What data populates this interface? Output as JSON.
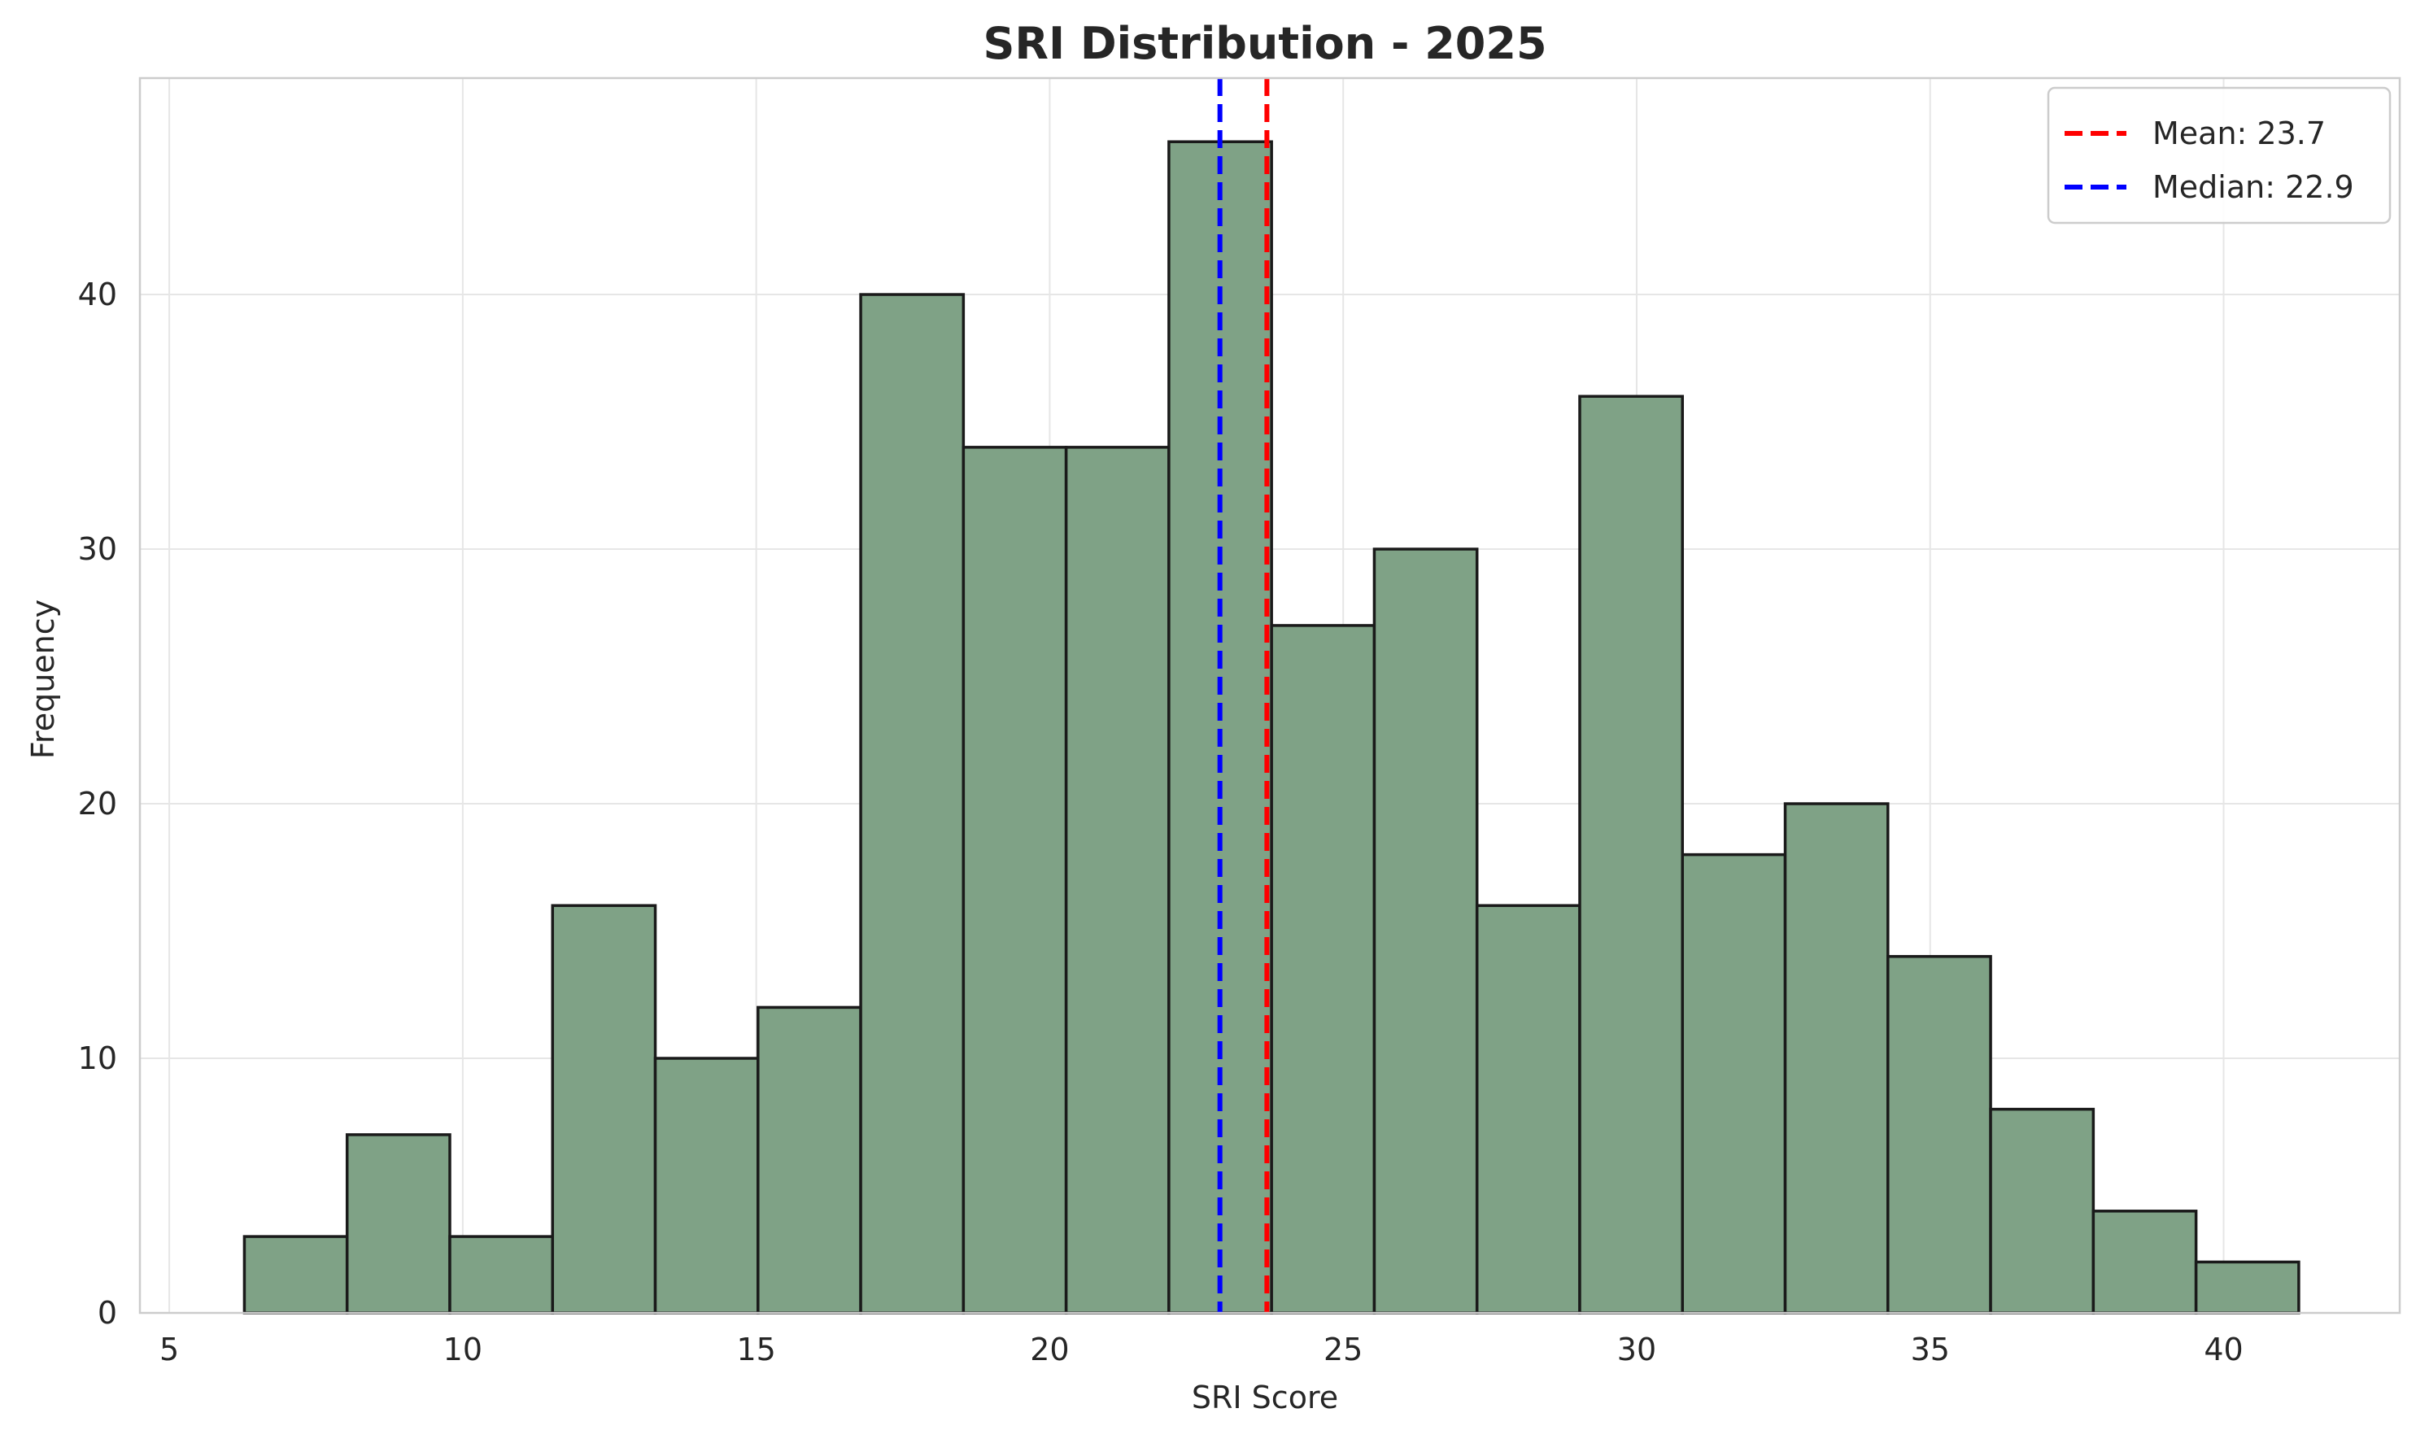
{
  "chart_data": {
    "type": "bar",
    "title": "SRI Distribution - 2025",
    "xlabel": "SRI Score",
    "ylabel": "Frequency",
    "xlim": [
      4.5,
      43
    ],
    "ylim": [
      0,
      48.5
    ],
    "xticks": [
      5,
      10,
      15,
      20,
      25,
      30,
      35,
      40
    ],
    "yticks": [
      0,
      10,
      20,
      30,
      40
    ],
    "grid": true,
    "bins": {
      "edges": [
        6.28,
        8.03,
        9.78,
        11.53,
        13.28,
        15.03,
        16.78,
        18.53,
        20.28,
        22.03,
        23.78,
        25.53,
        27.28,
        29.03,
        30.78,
        32.53,
        34.28,
        36.03,
        37.78,
        39.53,
        41.28
      ],
      "counts": [
        3,
        7,
        3,
        16,
        10,
        12,
        40,
        34,
        34,
        46,
        27,
        30,
        16,
        36,
        18,
        20,
        14,
        8,
        4,
        2
      ],
      "color": "#7fa286",
      "edge_color": "#1a1a1a"
    },
    "reference_lines": [
      {
        "name": "Mean: 23.7",
        "value": 23.7,
        "color": "#ff0000",
        "style": "dashed"
      },
      {
        "name": "Median: 22.9",
        "value": 22.9,
        "color": "#0000ff",
        "style": "dashed"
      }
    ],
    "legend_position": "top-right"
  }
}
